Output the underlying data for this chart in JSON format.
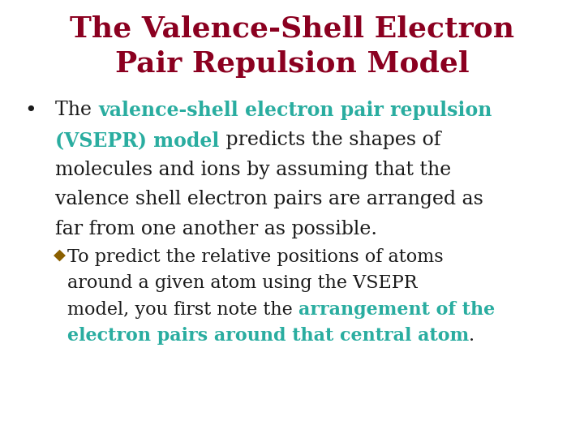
{
  "title_line1": "The Valence-Shell Electron",
  "title_line2": "Pair Repulsion Model",
  "title_color": "#8B0020",
  "background_color": "#FFFFFF",
  "title_fontsize": 26,
  "body_fontsize": 17,
  "sub_fontsize": 16,
  "teal_color": "#2AADA0",
  "black_color": "#1a1a1a",
  "bullet_color": "#8B6000",
  "bullet_char": "◆",
  "main_bullet": "•"
}
